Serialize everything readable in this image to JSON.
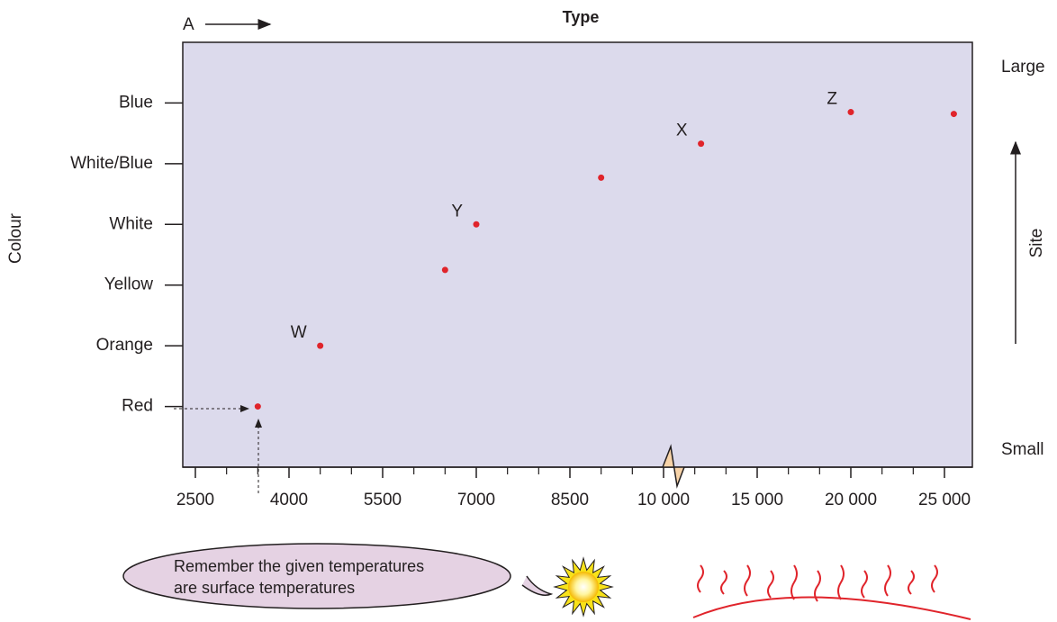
{
  "chart_data": {
    "type": "scatter",
    "title": "Type",
    "corner_label": "A",
    "y_label": "Colour",
    "side_label": "Site",
    "side_top": "Large",
    "side_bottom": "Small",
    "x": [
      3500,
      4500,
      6500,
      7000,
      9000,
      12000,
      20000,
      25500
    ],
    "values": [
      0,
      1,
      2.25,
      3,
      3.77,
      4.33,
      4.85,
      4.82
    ],
    "labels": [
      null,
      "W",
      null,
      "Y",
      null,
      "X",
      "Z",
      null
    ],
    "color": "#e0242b",
    "xlim": [
      2300,
      26500
    ],
    "xticks": [
      2500,
      4000,
      5500,
      7000,
      8500,
      {
        "value": 10000,
        "label": "10 000"
      },
      {
        "value": 15000,
        "label": "15 000"
      },
      {
        "value": 20000,
        "label": "20 000"
      },
      {
        "value": 25000,
        "label": "25 000"
      }
    ],
    "ylim": [
      -1,
      6
    ],
    "yticks": [
      {
        "value": 0,
        "label": "Red"
      },
      {
        "value": 1,
        "label": "Orange"
      },
      {
        "value": 2,
        "label": "Yellow"
      },
      {
        "value": 3,
        "label": "White"
      },
      {
        "value": 4,
        "label": "White/Blue"
      },
      {
        "value": 5,
        "label": "Blue"
      }
    ],
    "note": [
      "Remember the given temperatures",
      "are surface temperatures"
    ]
  }
}
